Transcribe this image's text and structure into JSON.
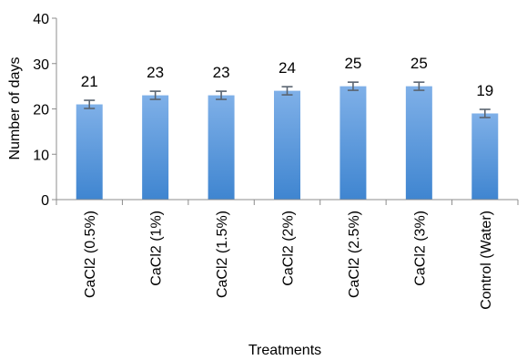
{
  "chart_data": {
    "type": "bar",
    "categories": [
      "CaCl2 (0.5%)",
      "CaCl2 (1%)",
      "CaCl2 (1.5%)",
      "CaCl2 (2%)",
      "CaCl2 (2.5%)",
      "CaCl2 (3%)",
      "Control (Water)"
    ],
    "values": [
      21,
      23,
      23,
      24,
      25,
      25,
      19
    ],
    "data_labels": [
      "21",
      "23",
      "23",
      "24",
      "25",
      "25",
      "19"
    ],
    "error": [
      0.9,
      0.9,
      0.9,
      0.9,
      0.9,
      0.9,
      0.9
    ],
    "xlabel": "Treatments",
    "ylabel": "Number of days",
    "ylim": [
      0,
      40
    ],
    "yticks": [
      "0",
      "10",
      "20",
      "30",
      "40"
    ],
    "grid": false,
    "legend": "none",
    "colors": {
      "bar_top": "#7fb0e8",
      "bar_bottom": "#3f85d0",
      "error_bar": "#5a6470",
      "axis": "#8c8c8c"
    }
  }
}
